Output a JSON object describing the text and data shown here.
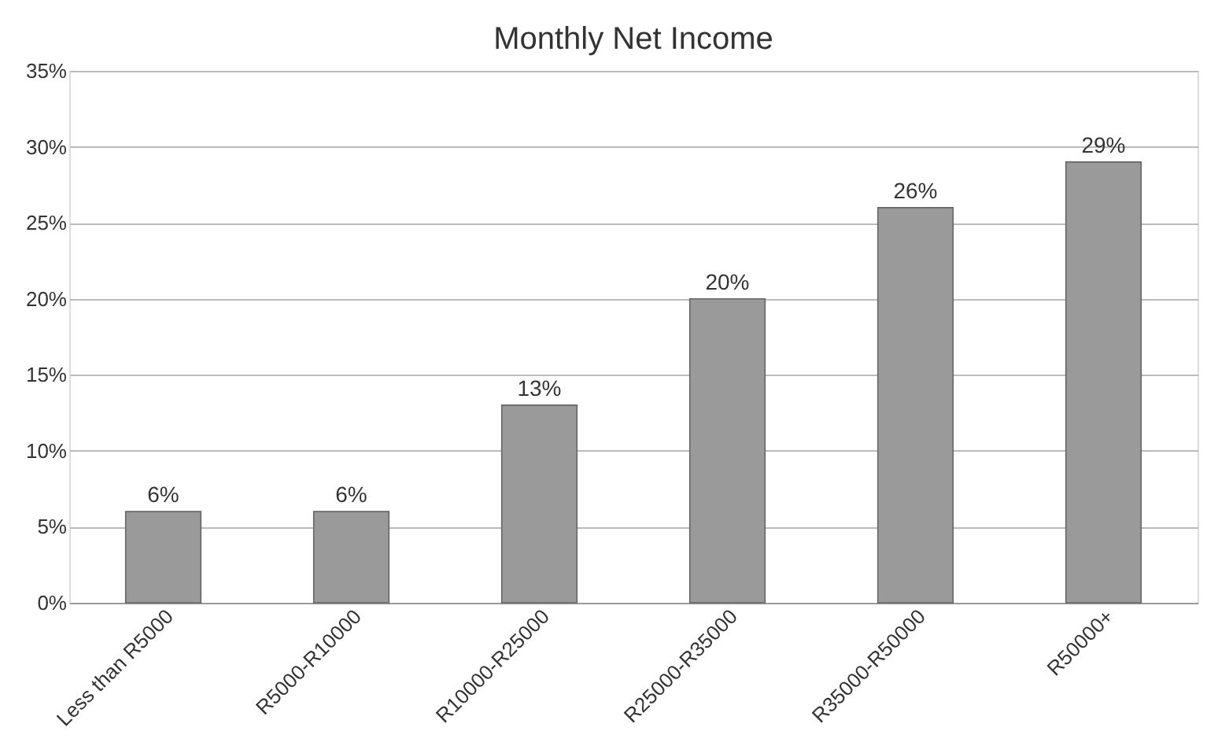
{
  "chart_data": {
    "type": "bar",
    "title": "Monthly Net Income",
    "categories": [
      "Less than R5000",
      "R5000-R10000",
      "R10000-R25000",
      "R25000-R35000",
      "R35000-R50000",
      "R50000+"
    ],
    "values": [
      6,
      6,
      13,
      20,
      26,
      29
    ],
    "value_labels": [
      "6%",
      "6%",
      "13%",
      "20%",
      "26%",
      "29%"
    ],
    "color": "#9a9a9a",
    "ylim": [
      0,
      35
    ],
    "yticks": [
      {
        "value": 0,
        "label": "0%"
      },
      {
        "value": 5,
        "label": "5%"
      },
      {
        "value": 10,
        "label": "10%"
      },
      {
        "value": 15,
        "label": "15%"
      },
      {
        "value": 20,
        "label": "20%"
      },
      {
        "value": 25,
        "label": "25%"
      },
      {
        "value": 30,
        "label": "30%"
      },
      {
        "value": 35,
        "label": "35%"
      }
    ],
    "grid": "y"
  }
}
